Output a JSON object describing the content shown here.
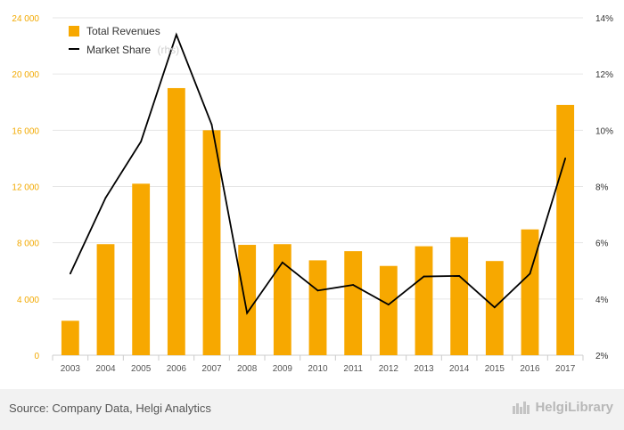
{
  "chart_data": {
    "type": "bar",
    "categories": [
      "2003",
      "2004",
      "2005",
      "2006",
      "2007",
      "2008",
      "2009",
      "2010",
      "2011",
      "2012",
      "2013",
      "2014",
      "2015",
      "2016",
      "2017"
    ],
    "series": [
      {
        "name": "Total Revenues",
        "type": "bar",
        "axis": "left",
        "color": "#f7a800",
        "values": [
          2450,
          7900,
          12200,
          19000,
          16000,
          7850,
          7900,
          6750,
          7400,
          6350,
          7750,
          8400,
          6700,
          8950,
          17800
        ]
      },
      {
        "name": "Market Share",
        "type": "line",
        "axis": "right",
        "color": "#000000",
        "values": [
          4.9,
          7.6,
          9.6,
          13.4,
          10.2,
          3.5,
          5.3,
          4.3,
          4.5,
          3.8,
          4.8,
          4.82,
          3.7,
          4.9,
          9.0
        ]
      }
    ],
    "y_left": {
      "min": 0,
      "max": 24000,
      "ticks": [
        "0",
        "4 000",
        "8 000",
        "12 000",
        "16 000",
        "20 000",
        "24 000"
      ]
    },
    "y_right": {
      "min": 2,
      "max": 14,
      "ticks": [
        "2%",
        "4%",
        "6%",
        "8%",
        "10%",
        "12%",
        "14%"
      ]
    },
    "legend": {
      "position": "top-left",
      "items": [
        {
          "label": "Total Revenues",
          "note": ""
        },
        {
          "label": "Market Share",
          "note": "(rhs)"
        }
      ]
    },
    "grid": true
  },
  "footer": {
    "source": "Source: Company Data, Helgi Analytics",
    "brand": "HelgiLibrary"
  }
}
